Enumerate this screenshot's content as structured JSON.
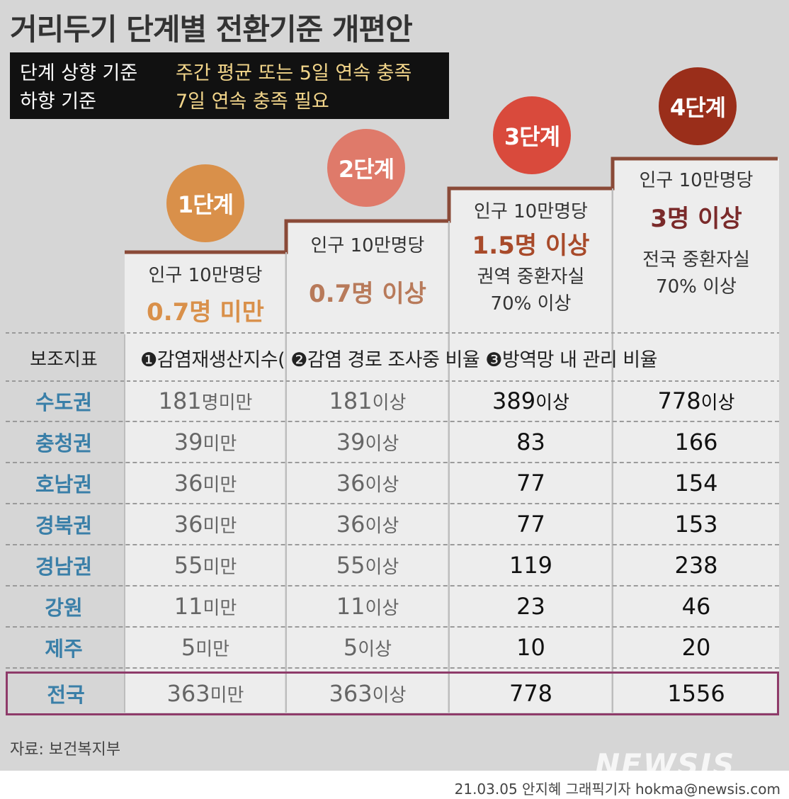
{
  "title": "거리두기 단계별 전환기준 개편안",
  "criteria": {
    "up_label": "단계 상향 기준",
    "up_value": "주간 평균 또는 5일 연속 충족",
    "down_label": "하향 기준",
    "down_value": "7일 연속 충족 필요"
  },
  "stages": [
    {
      "name": "1단계",
      "pop": "인구 10만명당",
      "threshold": "0.7명 미만",
      "sub1": "",
      "sub2": "",
      "color": "#d9904a"
    },
    {
      "name": "2단계",
      "pop": "인구 10만명당",
      "threshold": "0.7명 이상",
      "sub1": "",
      "sub2": "",
      "color": "#c9805a"
    },
    {
      "name": "3단계",
      "pop": "인구 10만명당",
      "threshold": "1.5명 이상",
      "sub1": "권역 중환자실",
      "sub2": "70% 이상",
      "color": "#a84a2a"
    },
    {
      "name": "4단계",
      "pop": "인구 10만명당",
      "threshold": "3명 이상",
      "sub1": "전국 중환자실",
      "sub2": "70% 이상",
      "color": "#8a2e2a"
    }
  ],
  "aux": {
    "label": "보조지표",
    "text": "❶감염재생산지수( ❷감염 경로 조사중 비율 ❸방역망 내 관리 비율"
  },
  "rows": [
    {
      "region": "수도권",
      "c1": "181",
      "c1u": "명미만",
      "c2": "181",
      "c2u": "이상",
      "c3": "389",
      "c3u": "이상",
      "c4": "778",
      "c4u": "이상"
    },
    {
      "region": "충청권",
      "c1": "39",
      "c1u": "미만",
      "c2": "39",
      "c2u": "이상",
      "c3": "83",
      "c3u": "",
      "c4": "166",
      "c4u": ""
    },
    {
      "region": "호남권",
      "c1": "36",
      "c1u": "미만",
      "c2": "36",
      "c2u": "이상",
      "c3": "77",
      "c3u": "",
      "c4": "154",
      "c4u": ""
    },
    {
      "region": "경북권",
      "c1": "36",
      "c1u": "미만",
      "c2": "36",
      "c2u": "이상",
      "c3": "77",
      "c3u": "",
      "c4": "153",
      "c4u": ""
    },
    {
      "region": "경남권",
      "c1": "55",
      "c1u": "미만",
      "c2": "55",
      "c2u": "이상",
      "c3": "119",
      "c3u": "",
      "c4": "238",
      "c4u": ""
    },
    {
      "region": "강원",
      "c1": "11",
      "c1u": "미만",
      "c2": "11",
      "c2u": "이상",
      "c3": "23",
      "c3u": "",
      "c4": "46",
      "c4u": ""
    },
    {
      "region": "제주",
      "c1": "5",
      "c1u": "미만",
      "c2": "5",
      "c2u": "이상",
      "c3": "10",
      "c3u": "",
      "c4": "20",
      "c4u": ""
    }
  ],
  "national": {
    "region": "전국",
    "c1": "363",
    "c1u": "미만",
    "c2": "363",
    "c2u": "이상",
    "c3": "778",
    "c3u": "",
    "c4": "1556",
    "c4u": ""
  },
  "source": "자료: 보건복지부",
  "credit": "21.03.05 안지혜 그래픽기자 hokma@newsis.com",
  "logo": "NEWSIS"
}
